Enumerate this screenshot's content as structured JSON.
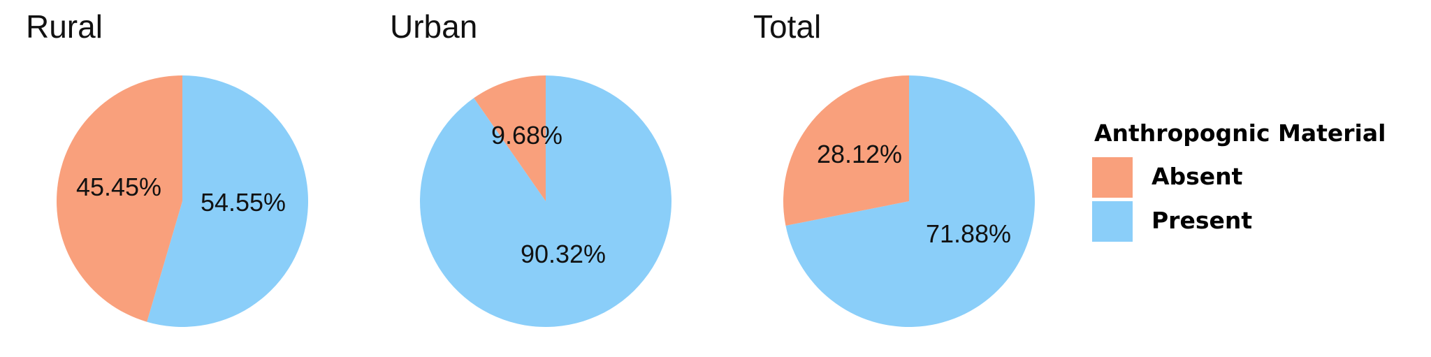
{
  "chart_data": {
    "type": "pie",
    "legend": {
      "title": "Anthropognic Material",
      "placement": "right",
      "entries": [
        "Absent",
        "Present"
      ]
    },
    "colors": {
      "Absent": "#F9A07C",
      "Present": "#8ACEF9"
    },
    "charts": [
      {
        "title": "Rural",
        "slices": [
          {
            "category": "Absent",
            "value": 45.45,
            "label": "45.45%"
          },
          {
            "category": "Present",
            "value": 54.55,
            "label": "54.55%"
          }
        ]
      },
      {
        "title": "Urban",
        "slices": [
          {
            "category": "Absent",
            "value": 9.68,
            "label": "9.68%"
          },
          {
            "category": "Present",
            "value": 90.32,
            "label": "90.32%"
          }
        ]
      },
      {
        "title": "Total",
        "slices": [
          {
            "category": "Absent",
            "value": 28.12,
            "label": "28.12%"
          },
          {
            "category": "Present",
            "value": 71.88,
            "label": "71.88%"
          }
        ]
      }
    ]
  }
}
